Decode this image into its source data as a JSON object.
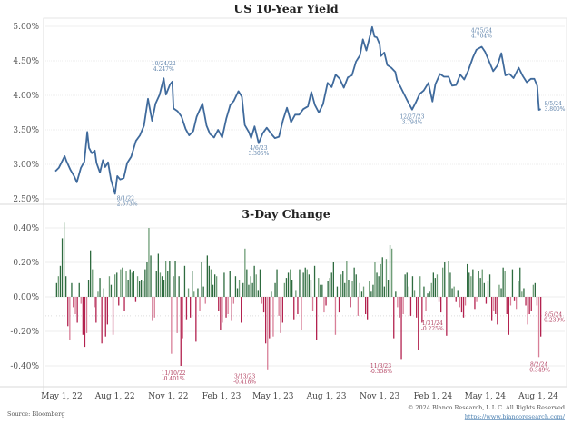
{
  "chart_data": [
    {
      "type": "line",
      "title": "US 10-Year Yield",
      "ylabel": "",
      "xlabel": "",
      "ylim": [
        2.5,
        5.0
      ],
      "yticks": [
        "5.00%",
        "4.50%",
        "4.00%",
        "3.50%",
        "3.00%",
        "2.50%"
      ],
      "ytick_values": [
        5.0,
        4.5,
        4.0,
        3.5,
        3.0,
        2.5
      ],
      "grid": true,
      "color": "#3f6a9c",
      "series": [
        {
          "name": "US 10-Year Yield",
          "points": [
            [
              "2022-04-20",
              2.9
            ],
            [
              "2022-04-26",
              2.95
            ],
            [
              "2022-05-02",
              3.05
            ],
            [
              "2022-05-06",
              3.12
            ],
            [
              "2022-05-09",
              3.05
            ],
            [
              "2022-05-16",
              2.92
            ],
            [
              "2022-05-23",
              2.82
            ],
            [
              "2022-05-27",
              2.74
            ],
            [
              "2022-06-03",
              2.95
            ],
            [
              "2022-06-09",
              3.04
            ],
            [
              "2022-06-14",
              3.47
            ],
            [
              "2022-06-17",
              3.24
            ],
            [
              "2022-06-22",
              3.16
            ],
            [
              "2022-06-27",
              3.2
            ],
            [
              "2022-06-30",
              3.02
            ],
            [
              "2022-07-06",
              2.88
            ],
            [
              "2022-07-11",
              3.06
            ],
            [
              "2022-07-15",
              2.96
            ],
            [
              "2022-07-20",
              3.03
            ],
            [
              "2022-07-25",
              2.78
            ],
            [
              "2022-08-01",
              2.573
            ],
            [
              "2022-08-05",
              2.83
            ],
            [
              "2022-08-10",
              2.78
            ],
            [
              "2022-08-16",
              2.8
            ],
            [
              "2022-08-22",
              3.02
            ],
            [
              "2022-08-29",
              3.11
            ],
            [
              "2022-09-06",
              3.34
            ],
            [
              "2022-09-13",
              3.42
            ],
            [
              "2022-09-20",
              3.56
            ],
            [
              "2022-09-27",
              3.95
            ],
            [
              "2022-10-04",
              3.63
            ],
            [
              "2022-10-10",
              3.88
            ],
            [
              "2022-10-17",
              4.01
            ],
            [
              "2022-10-24",
              4.247
            ],
            [
              "2022-10-28",
              4.01
            ],
            [
              "2022-11-04",
              4.16
            ],
            [
              "2022-11-08",
              4.2
            ],
            [
              "2022-11-10",
              3.81
            ],
            [
              "2022-11-17",
              3.77
            ],
            [
              "2022-11-24",
              3.69
            ],
            [
              "2022-12-01",
              3.51
            ],
            [
              "2022-12-07",
              3.42
            ],
            [
              "2022-12-14",
              3.48
            ],
            [
              "2022-12-20",
              3.69
            ],
            [
              "2022-12-30",
              3.88
            ],
            [
              "2023-01-06",
              3.56
            ],
            [
              "2023-01-12",
              3.44
            ],
            [
              "2023-01-19",
              3.39
            ],
            [
              "2023-01-26",
              3.5
            ],
            [
              "2023-02-02",
              3.39
            ],
            [
              "2023-02-09",
              3.66
            ],
            [
              "2023-02-16",
              3.86
            ],
            [
              "2023-02-22",
              3.92
            ],
            [
              "2023-03-02",
              4.06
            ],
            [
              "2023-03-08",
              3.98
            ],
            [
              "2023-03-13",
              3.57
            ],
            [
              "2023-03-20",
              3.47
            ],
            [
              "2023-03-24",
              3.38
            ],
            [
              "2023-03-30",
              3.55
            ],
            [
              "2023-04-06",
              3.305
            ],
            [
              "2023-04-13",
              3.45
            ],
            [
              "2023-04-20",
              3.53
            ],
            [
              "2023-04-28",
              3.44
            ],
            [
              "2023-05-04",
              3.38
            ],
            [
              "2023-05-11",
              3.4
            ],
            [
              "2023-05-18",
              3.64
            ],
            [
              "2023-05-25",
              3.82
            ],
            [
              "2023-06-01",
              3.61
            ],
            [
              "2023-06-08",
              3.72
            ],
            [
              "2023-06-15",
              3.72
            ],
            [
              "2023-06-22",
              3.8
            ],
            [
              "2023-06-30",
              3.84
            ],
            [
              "2023-07-06",
              4.05
            ],
            [
              "2023-07-12",
              3.86
            ],
            [
              "2023-07-19",
              3.75
            ],
            [
              "2023-07-26",
              3.87
            ],
            [
              "2023-08-03",
              4.18
            ],
            [
              "2023-08-10",
              4.12
            ],
            [
              "2023-08-17",
              4.3
            ],
            [
              "2023-08-24",
              4.24
            ],
            [
              "2023-08-31",
              4.11
            ],
            [
              "2023-09-07",
              4.26
            ],
            [
              "2023-09-14",
              4.29
            ],
            [
              "2023-09-21",
              4.49
            ],
            [
              "2023-09-28",
              4.58
            ],
            [
              "2023-10-03",
              4.81
            ],
            [
              "2023-10-09",
              4.65
            ],
            [
              "2023-10-19",
              4.99
            ],
            [
              "2023-10-23",
              4.85
            ],
            [
              "2023-10-27",
              4.84
            ],
            [
              "2023-11-01",
              4.74
            ],
            [
              "2023-11-03",
              4.57
            ],
            [
              "2023-11-09",
              4.62
            ],
            [
              "2023-11-14",
              4.44
            ],
            [
              "2023-11-21",
              4.4
            ],
            [
              "2023-11-28",
              4.34
            ],
            [
              "2023-12-01",
              4.22
            ],
            [
              "2023-12-07",
              4.12
            ],
            [
              "2023-12-13",
              4.02
            ],
            [
              "2023-12-19",
              3.92
            ],
            [
              "2023-12-27",
              3.794
            ],
            [
              "2024-01-03",
              3.91
            ],
            [
              "2024-01-09",
              4.02
            ],
            [
              "2024-01-16",
              4.07
            ],
            [
              "2024-01-24",
              4.18
            ],
            [
              "2024-01-31",
              3.91
            ],
            [
              "2024-02-05",
              4.16
            ],
            [
              "2024-02-13",
              4.31
            ],
            [
              "2024-02-20",
              4.27
            ],
            [
              "2024-02-28",
              4.27
            ],
            [
              "2024-03-05",
              4.14
            ],
            [
              "2024-03-12",
              4.15
            ],
            [
              "2024-03-19",
              4.3
            ],
            [
              "2024-03-26",
              4.23
            ],
            [
              "2024-04-02",
              4.36
            ],
            [
              "2024-04-10",
              4.55
            ],
            [
              "2024-04-16",
              4.66
            ],
            [
              "2024-04-25",
              4.704
            ],
            [
              "2024-05-01",
              4.63
            ],
            [
              "2024-05-08",
              4.49
            ],
            [
              "2024-05-15",
              4.35
            ],
            [
              "2024-05-22",
              4.43
            ],
            [
              "2024-05-29",
              4.61
            ],
            [
              "2024-06-05",
              4.29
            ],
            [
              "2024-06-12",
              4.31
            ],
            [
              "2024-06-19",
              4.25
            ],
            [
              "2024-06-28",
              4.4
            ],
            [
              "2024-07-05",
              4.28
            ],
            [
              "2024-07-12",
              4.19
            ],
            [
              "2024-07-19",
              4.24
            ],
            [
              "2024-07-25",
              4.24
            ],
            [
              "2024-07-30",
              4.14
            ],
            [
              "2024-08-02",
              3.79
            ],
            [
              "2024-08-05",
              3.8
            ]
          ]
        }
      ],
      "annotations": [
        {
          "date": "2022-08-01",
          "label": "8/1/22",
          "value": "2.573%"
        },
        {
          "date": "2022-10-24",
          "label": "10/24/22",
          "value": "4.247%"
        },
        {
          "date": "2023-04-06",
          "label": "4/6/23",
          "value": "3.305%"
        },
        {
          "date": "2023-12-27",
          "label": "12/27/23",
          "value": "3.794%"
        },
        {
          "date": "2024-04-25",
          "label": "4/25/24",
          "value": "4.704%"
        },
        {
          "date": "2024-08-05",
          "label": "8/5/24",
          "value": "3.800%"
        }
      ]
    },
    {
      "type": "bar",
      "title": "3-Day Change",
      "ylim": [
        -0.5,
        0.45
      ],
      "yticks": [
        "0.40%",
        "0.20%",
        "0.00%",
        "-0.20%",
        "-0.40%"
      ],
      "ytick_values": [
        0.4,
        0.2,
        0.0,
        -0.2,
        -0.4
      ],
      "grid": true,
      "colors": {
        "positive": "#2e6b3f",
        "positive_light": "#6f9e78",
        "negative": "#b3224f",
        "negative_light": "#d87f98"
      },
      "xticks": [
        "May 1, 22",
        "Aug 1, 22",
        "Nov 1, 22",
        "Feb 1, 23",
        "May 1, 23",
        "Aug 1, 23",
        "Nov 1, 23",
        "Feb 1, 24",
        "May 1, 24",
        "Aug 1, 24"
      ],
      "xtick_dates": [
        "2022-05-01",
        "2022-08-01",
        "2022-11-01",
        "2023-02-01",
        "2023-05-01",
        "2023-08-01",
        "2023-11-01",
        "2024-02-01",
        "2024-05-01",
        "2024-08-01"
      ],
      "series": [
        {
          "name": "3-Day Change",
          "values": [
            0.08,
            0.12,
            0.18,
            0.34,
            0.43,
            0.12,
            -0.17,
            -0.25,
            0.08,
            -0.06,
            -0.1,
            -0.15,
            0.08,
            -0.04,
            -0.22,
            -0.29,
            -0.21,
            0.1,
            0.27,
            0.16,
            -0.06,
            -0.15,
            0.03,
            0.11,
            -0.27,
            0.05,
            -0.23,
            -0.16,
            0.12,
            0.07,
            -0.22,
            0.13,
            0.14,
            -0.05,
            0.16,
            0.17,
            -0.08,
            0.15,
            0.1,
            0.16,
            0.14,
            0.15,
            -0.03,
            0.12,
            0.09,
            0.1,
            0.09,
            0.16,
            0.2,
            0.4,
            0.24,
            -0.14,
            -0.12,
            0.15,
            0.25,
            0.14,
            0.12,
            0.1,
            0.21,
            0.15,
            0.21,
            -0.33,
            0.12,
            0.21,
            -0.21,
            0.12,
            -0.4,
            -0.24,
            0.18,
            -0.13,
            0.05,
            -0.12,
            0.15,
            0.03,
            -0.26,
            0.05,
            -0.08,
            0.2,
            0.06,
            -0.04,
            0.24,
            0.18,
            0.16,
            0.07,
            0.13,
            0.12,
            -0.08,
            -0.19,
            -0.15,
            0.14,
            -0.12,
            -0.1,
            0.15,
            -0.14,
            -0.04,
            0.12,
            0.05,
            0.1,
            -0.15,
            0.08,
            0.28,
            0.16,
            0.07,
            0.12,
            0.08,
            0.18,
            0.13,
            0.04,
            0.16,
            -0.04,
            -0.09,
            -0.27,
            -0.42,
            -0.24,
            0.03,
            -0.23,
            0.08,
            0.16,
            -0.11,
            -0.21,
            -0.15,
            0.08,
            0.11,
            0.14,
            0.16,
            0.1,
            -0.13,
            0.04,
            -0.1,
            0.16,
            -0.19,
            0.14,
            0.17,
            0.16,
            0.13,
            0.1,
            -0.08,
            0.18,
            -0.25,
            0.11,
            0.07,
            0.07,
            -0.09,
            -0.05,
            0.09,
            0.11,
            0.14,
            0.2,
            -0.22,
            0.06,
            -0.09,
            0.13,
            0.15,
            0.08,
            0.21,
            0.1,
            -0.06,
            0.09,
            0.17,
            0.13,
            -0.11,
            0.08,
            0.03,
            0.06,
            -0.1,
            -0.13,
            0.09,
            0.03,
            0.07,
            0.2,
            0.14,
            0.12,
            0.19,
            0.23,
            0.06,
            0.22,
            0.1,
            0.3,
            0.28,
            -0.24,
            0.03,
            -0.06,
            -0.12,
            -0.36,
            -0.1,
            0.13,
            0.14,
            0.06,
            -0.11,
            0.12,
            0.04,
            -0.12,
            -0.31,
            0.12,
            -0.15,
            0.06,
            -0.08,
            0.02,
            0.03,
            0.08,
            0.14,
            0.11,
            0.13,
            -0.03,
            -0.09,
            0.17,
            0.2,
            -0.225,
            0.21,
            0.14,
            0.05,
            0.06,
            -0.03,
            0.04,
            -0.06,
            -0.09,
            -0.12,
            -0.05,
            0.19,
            0.14,
            0.12,
            0.16,
            -0.07,
            -0.03,
            0.15,
            0.11,
            0.16,
            0.08,
            -0.04,
            0.09,
            0.13,
            -0.14,
            -0.08,
            -0.1,
            -0.16,
            0.07,
            0.05,
            0.17,
            0.15,
            -0.1,
            -0.22,
            -0.05,
            0.16,
            -0.02,
            -0.07,
            0.09,
            0.17,
            0.03,
            0.05,
            -0.05,
            -0.16,
            -0.1,
            -0.08,
            0.07,
            0.08,
            -0.05,
            -0.349,
            -0.23
          ]
        }
      ],
      "annotations": [
        {
          "date": "2022-11-10",
          "label": "11/10/22",
          "value": "-0.401%"
        },
        {
          "date": "2023-03-13",
          "label": "3/13/23",
          "value": "-0.418%"
        },
        {
          "date": "2023-11-03",
          "label": "11/3/23",
          "value": "-0.358%"
        },
        {
          "date": "2024-01-31",
          "label": "1/31/24",
          "value": "-0.225%"
        },
        {
          "date": "2024-08-02",
          "label": "8/2/24",
          "value": "-0.349%"
        },
        {
          "date": "2024-08-05",
          "label": "8/5/24",
          "value": "-0.230%"
        }
      ]
    }
  ],
  "footer": {
    "source": "Source: Bloomberg",
    "copyright": "© 2024 Blanco Research, L.L.C. All Rights Reserved",
    "url": "https://www.biancoresearch.com/"
  }
}
